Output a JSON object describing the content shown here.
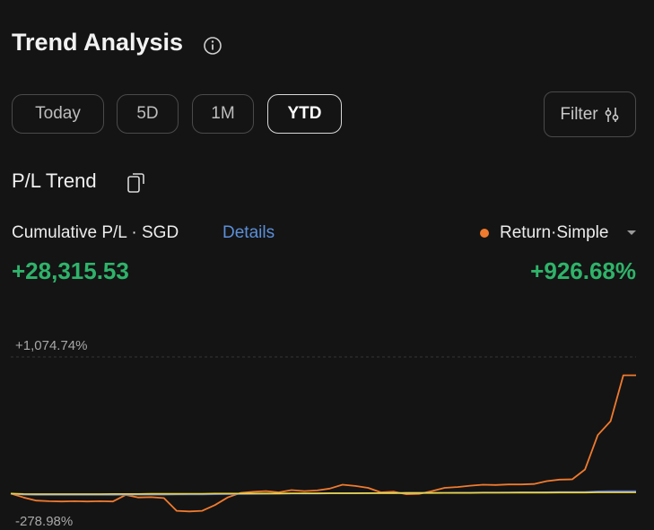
{
  "header": {
    "title": "Trend Analysis"
  },
  "tabs": [
    {
      "label": "Today",
      "active": false
    },
    {
      "label": "5D",
      "active": false
    },
    {
      "label": "1M",
      "active": false
    },
    {
      "label": "YTD",
      "active": true
    }
  ],
  "filter": {
    "label": "Filter"
  },
  "section": {
    "title": "P/L Trend"
  },
  "summary": {
    "label": "Cumulative P/L · SGD",
    "link": "Details",
    "value": "+28,315.53",
    "metric_value": "+926.68%"
  },
  "chart_data": {
    "type": "line",
    "ylim": [
      -278.98,
      1074.74
    ],
    "yticks": [
      {
        "value": 1074.74,
        "label": "+1,074.74%"
      },
      {
        "value": -278.98,
        "label": "-278.98%"
      }
    ],
    "grid": true,
    "series": [
      {
        "name": "Return·Simple",
        "color": "#f07a2e",
        "values": [
          0,
          -30,
          -55,
          -60,
          -62,
          -60,
          -62,
          -60,
          -62,
          -10,
          -30,
          -28,
          -35,
          -135,
          -140,
          -135,
          -90,
          -30,
          5,
          14,
          20,
          10,
          28,
          20,
          25,
          40,
          70,
          60,
          45,
          10,
          15,
          -5,
          -2,
          20,
          45,
          52,
          62,
          70,
          68,
          72,
          72,
          76,
          98,
          110,
          112,
          190,
          460,
          570,
          930,
          930
        ]
      },
      {
        "color": "#4f6fd6",
        "values": [
          0,
          -8,
          -10,
          -10,
          -10,
          -10,
          -10,
          -10,
          -10,
          -9,
          -8,
          -8,
          -8,
          -7,
          -7,
          -6,
          -5,
          -4,
          -3,
          -2,
          -1,
          0,
          0,
          1,
          1,
          2,
          2,
          3,
          3,
          4,
          4,
          5,
          5,
          6,
          6,
          7,
          7,
          8,
          8,
          9,
          10,
          10,
          11,
          12,
          12,
          13,
          18,
          20,
          20,
          20
        ]
      },
      {
        "color": "#e8d44a",
        "values": [
          0,
          -3,
          -4,
          -4,
          -4,
          -4,
          -4,
          -4,
          -3,
          -3,
          -3,
          -2,
          -2,
          -2,
          -1,
          -1,
          0,
          0,
          0,
          1,
          1,
          1,
          2,
          2,
          2,
          3,
          3,
          3,
          4,
          4,
          4,
          5,
          5,
          5,
          6,
          6,
          6,
          7,
          7,
          7,
          8,
          8,
          8,
          9,
          9,
          9,
          10,
          10,
          10,
          10
        ]
      }
    ]
  }
}
